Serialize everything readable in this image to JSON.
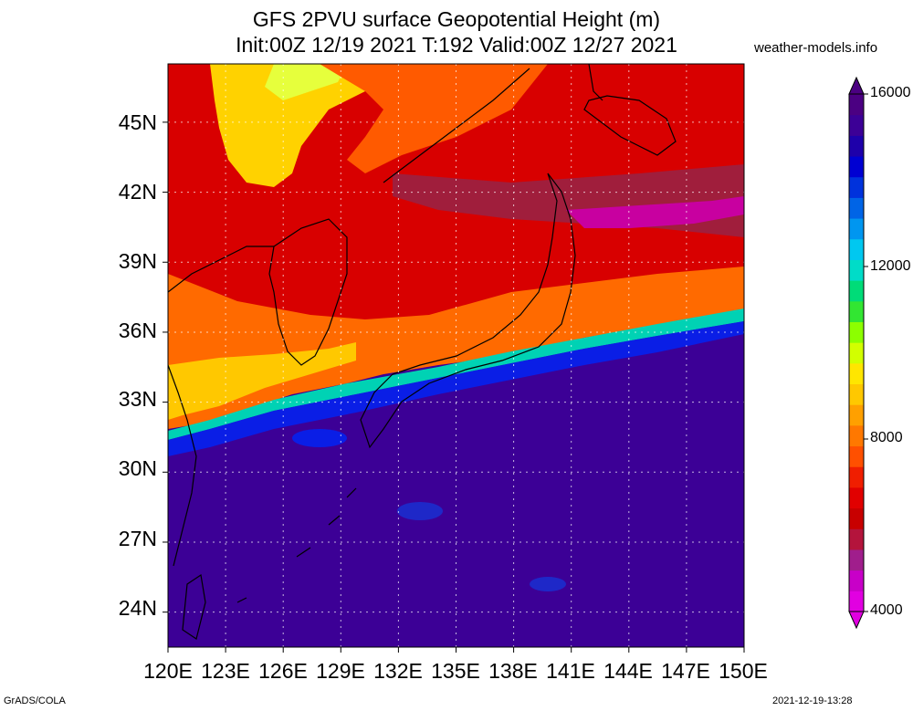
{
  "title": {
    "line1": "GFS 2PVU surface Geopotential Height (m)",
    "line2": "Init:00Z 12/19 2021 T:192 Valid:00Z 12/27 2021"
  },
  "source_label": "weather-models.info",
  "footer": {
    "left": "GrADS/COLA",
    "right": "2021-12-19-13:28"
  },
  "map": {
    "region": "Japan / Korea / East China Sea",
    "lon_range": [
      120,
      150
    ],
    "lat_range": [
      22.5,
      47.5
    ],
    "x_ticks": [
      "120E",
      "123E",
      "126E",
      "129E",
      "132E",
      "135E",
      "138E",
      "141E",
      "144E",
      "147E",
      "150E"
    ],
    "y_ticks": [
      "45N",
      "42N",
      "39N",
      "36N",
      "33N",
      "30N",
      "27N",
      "24N"
    ],
    "grid": true
  },
  "colorbar": {
    "labels": [
      "16000",
      "12000",
      "8000",
      "4000"
    ],
    "min": 4000,
    "max": 16000,
    "colors": [
      "#e100e1",
      "#c800c8",
      "#a01e8c",
      "#b4143c",
      "#c80000",
      "#e10000",
      "#f01e00",
      "#ff5000",
      "#ff7800",
      "#ffa000",
      "#ffc800",
      "#ffe600",
      "#d2ff00",
      "#8cff00",
      "#32e632",
      "#00dc78",
      "#00dcc8",
      "#00c8f0",
      "#0096f0",
      "#0064e6",
      "#0032dc",
      "#0000d2",
      "#1e00aa",
      "#3c0096",
      "#4b0082"
    ]
  }
}
